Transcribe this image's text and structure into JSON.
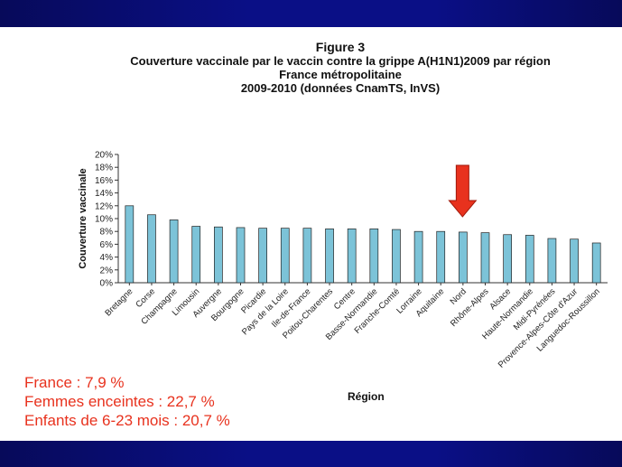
{
  "header": {
    "figure": "Figure 3",
    "line1": "Couverture vaccinale par le vaccin contre la grippe A(H1N1)2009 par région",
    "line2": "France métropolitaine",
    "line3": "2009-2010 (données CnamTS, InVS)"
  },
  "stats": {
    "france": "France : 7,9 %",
    "femmes": "Femmes enceintes : 22,7 %",
    "enfants": "Enfants de 6-23 mois : 20,7 %"
  },
  "colors": {
    "bar": "#7cc3d8",
    "bar_edge": "#222222",
    "arrow": "#e8321e",
    "stats_text": "#e8321e",
    "band": "#0a0f86"
  },
  "chart_data": {
    "type": "bar",
    "title": "",
    "xlabel": "Région",
    "ylabel": "Couverture vaccinale",
    "ylim": [
      0,
      20
    ],
    "yticks": [
      "0%",
      "2%",
      "4%",
      "6%",
      "8%",
      "10%",
      "12%",
      "14%",
      "16%",
      "18%",
      "20%"
    ],
    "grid": false,
    "categories": [
      "Bretagne",
      "Corse",
      "Champagne",
      "Limousin",
      "Auvergne",
      "Bourgogne",
      "Picardie",
      "Pays de la Loire",
      "Ile-de-France",
      "Poitou-Charentes",
      "Centre",
      "Basse-Normandie",
      "Franche-Comté",
      "Lorraine",
      "Aquitaine",
      "Nord",
      "Rhône-Alpes",
      "Alsace",
      "Haute-Normandie",
      "Midi-Pyrénées",
      "Provence-Alpes-Côte d'Azur",
      "Languedoc-Roussillon"
    ],
    "values": [
      12.0,
      10.6,
      9.8,
      8.8,
      8.7,
      8.6,
      8.5,
      8.5,
      8.5,
      8.4,
      8.4,
      8.4,
      8.3,
      8.0,
      8.0,
      7.9,
      7.8,
      7.5,
      7.4,
      6.9,
      6.8,
      6.2
    ],
    "annotation": {
      "type": "arrow",
      "target_category": "Nord",
      "color": "#e8321e"
    }
  }
}
